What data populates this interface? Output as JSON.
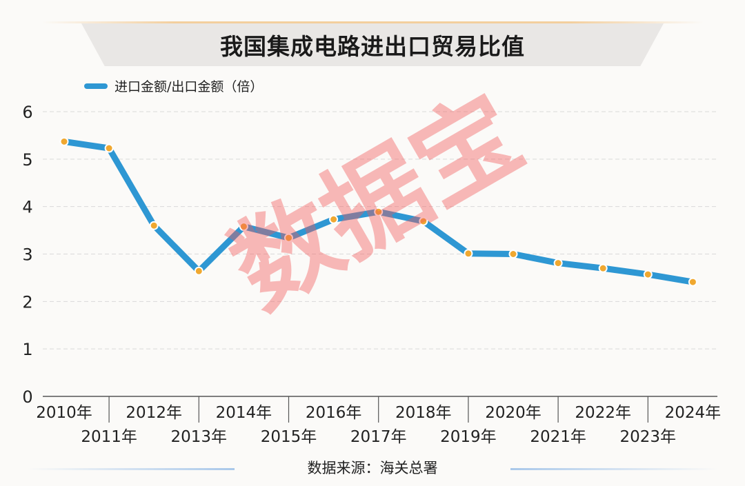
{
  "title": "我国集成电路进出口贸易比值",
  "source": "数据来源：海关总署",
  "watermark": "数据宝",
  "colors": {
    "line": "#2e97d3",
    "marker": "#f0a830",
    "grid": "#d9d9d9"
  },
  "chart_data": {
    "type": "line",
    "x": [
      "2010年",
      "2011年",
      "2012年",
      "2013年",
      "2014年",
      "2015年",
      "2016年",
      "2017年",
      "2018年",
      "2019年",
      "2020年",
      "2021年",
      "2022年",
      "2023年",
      "2024年"
    ],
    "series": [
      {
        "name": "进口金额/出口金额（倍）",
        "values": [
          5.37,
          5.23,
          3.6,
          2.64,
          3.58,
          3.34,
          3.73,
          3.89,
          3.69,
          3.01,
          3.0,
          2.81,
          2.7,
          2.57,
          2.41
        ]
      }
    ],
    "ylim": [
      0,
      6
    ],
    "yticks": [
      0,
      1,
      2,
      3,
      4,
      5,
      6
    ],
    "grid": true,
    "legend": "top-left"
  }
}
